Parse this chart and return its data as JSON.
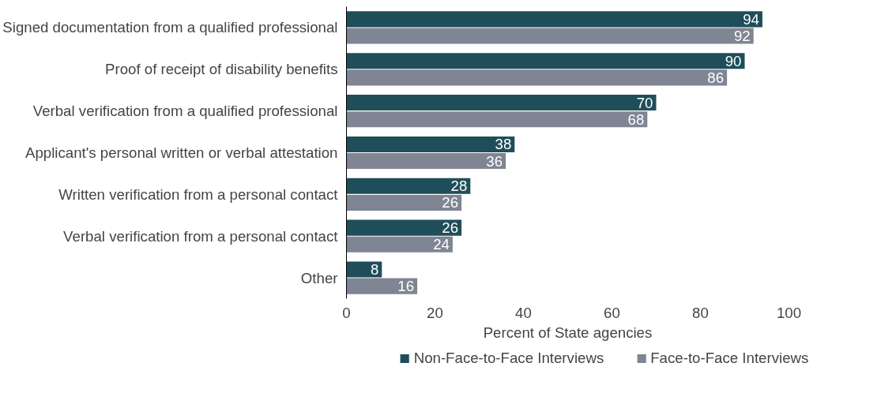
{
  "chart_data": {
    "type": "bar",
    "orientation": "horizontal",
    "xlabel": "Percent of State agencies",
    "categories": [
      "Signed documentation from a qualified professional",
      "Proof of receipt of disability benefits",
      "Verbal verification from a qualified professional",
      "Applicant's personal written or verbal attestation",
      "Written verification from a personal contact",
      "Verbal verification from a personal contact",
      "Other"
    ],
    "series": [
      {
        "name": "Non-Face-to-Face Interviews",
        "color": "#1f4e5a",
        "values": [
          94,
          90,
          70,
          38,
          28,
          26,
          8
        ]
      },
      {
        "name": "Face-to-Face Interviews",
        "color": "#7f8593",
        "values": [
          92,
          86,
          68,
          36,
          26,
          24,
          16
        ]
      }
    ],
    "xlim": [
      0,
      100
    ],
    "xticks": [
      0,
      20,
      40,
      60,
      80,
      100
    ],
    "data_labels": true,
    "legend": "bottom"
  }
}
